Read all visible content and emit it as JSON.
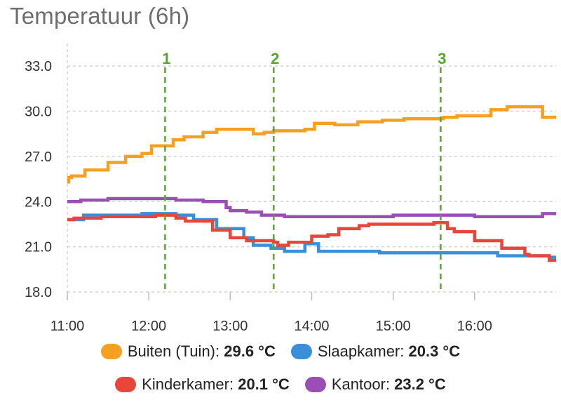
{
  "card": {
    "title": "Temperatuur (6h)"
  },
  "chart_data": {
    "type": "line",
    "title": "Temperatuur (6h)",
    "xlim": [
      "11:00",
      "17:00"
    ],
    "ylim": [
      18.0,
      34.5
    ],
    "x_ticks": [
      "11:00",
      "12:00",
      "13:00",
      "14:00",
      "15:00",
      "16:00"
    ],
    "y_ticks": [
      "18.0",
      "21.0",
      "24.0",
      "27.0",
      "30.0",
      "33.0"
    ],
    "grid": true,
    "step": true,
    "annotations": [
      {
        "label": "1",
        "x": "12:12"
      },
      {
        "label": "2",
        "x": "13:32"
      },
      {
        "label": "3",
        "x": "15:35"
      }
    ],
    "series": [
      {
        "name": "Buiten (Tuin)",
        "color": "#f5a020",
        "current": "29.6 °C",
        "x": [
          "11:00",
          "11:01",
          "11:03",
          "11:13",
          "11:30",
          "11:43",
          "11:55",
          "12:02",
          "12:18",
          "12:26",
          "12:40",
          "12:50",
          "13:03",
          "13:17",
          "13:25",
          "13:32",
          "13:50",
          "13:55",
          "14:02",
          "14:17",
          "14:34",
          "14:52",
          "15:08",
          "15:22",
          "15:37",
          "15:47",
          "16:00",
          "16:12",
          "16:24",
          "16:40",
          "16:45",
          "16:50",
          "17:00"
        ],
        "y": [
          25.3,
          25.6,
          25.7,
          26.1,
          26.6,
          27.0,
          27.2,
          27.7,
          28.1,
          28.3,
          28.6,
          28.8,
          28.8,
          28.5,
          28.6,
          28.7,
          28.7,
          28.8,
          29.2,
          29.1,
          29.3,
          29.4,
          29.5,
          29.5,
          29.6,
          29.7,
          29.7,
          30.1,
          30.3,
          30.3,
          30.3,
          29.6,
          29.6
        ]
      },
      {
        "name": "Slaapkamer",
        "color": "#3a8fd6",
        "current": "20.3 °C",
        "x": [
          "11:00",
          "11:12",
          "11:55",
          "12:20",
          "12:33",
          "12:50",
          "13:10",
          "13:17",
          "13:30",
          "13:40",
          "13:55",
          "13:58",
          "14:05",
          "14:20",
          "14:50",
          "15:20",
          "15:40",
          "15:55",
          "16:17",
          "16:55",
          "17:00"
        ],
        "y": [
          22.8,
          23.1,
          23.2,
          23.1,
          22.8,
          22.2,
          21.6,
          21.1,
          20.9,
          20.7,
          21.2,
          21.2,
          20.7,
          20.7,
          20.6,
          20.6,
          20.6,
          20.6,
          20.4,
          20.3,
          20.3
        ]
      },
      {
        "name": "Kinderkamer",
        "color": "#e8463a",
        "current": "20.1 °C",
        "x": [
          "11:00",
          "11:05",
          "11:25",
          "12:05",
          "12:20",
          "12:27",
          "12:47",
          "13:00",
          "13:12",
          "13:32",
          "13:35",
          "13:43",
          "14:00",
          "14:12",
          "14:20",
          "14:35",
          "14:42",
          "14:56",
          "15:00",
          "15:30",
          "15:40",
          "15:45",
          "16:00",
          "16:20",
          "16:37",
          "16:40",
          "16:55",
          "17:00"
        ],
        "y": [
          22.8,
          22.9,
          23.0,
          23.1,
          22.9,
          22.7,
          22.1,
          21.6,
          21.4,
          21.3,
          21.1,
          21.3,
          21.7,
          21.8,
          22.2,
          22.4,
          22.5,
          22.5,
          22.5,
          22.6,
          22.2,
          22.0,
          21.4,
          20.9,
          20.5,
          20.4,
          20.1,
          20.1
        ]
      },
      {
        "name": "Kantoor",
        "color": "#9b4fb5",
        "current": "23.2 °C",
        "x": [
          "11:00",
          "11:10",
          "11:30",
          "12:20",
          "12:40",
          "12:57",
          "13:00",
          "13:12",
          "13:23",
          "13:40",
          "14:00",
          "14:38",
          "15:00",
          "15:30",
          "16:00",
          "16:20",
          "16:30",
          "16:50",
          "17:00"
        ],
        "y": [
          24.0,
          24.1,
          24.2,
          24.1,
          24.0,
          23.6,
          23.4,
          23.3,
          23.1,
          23.0,
          23.0,
          23.0,
          23.1,
          23.1,
          23.0,
          23.0,
          23.0,
          23.2,
          23.2
        ]
      }
    ]
  }
}
